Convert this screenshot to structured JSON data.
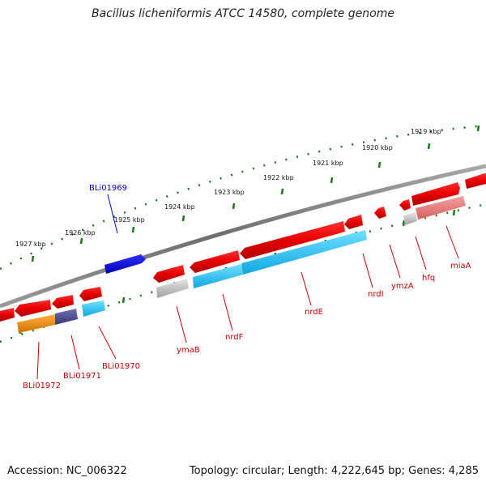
{
  "title": "Bacillus licheniformis ATCC 14580, complete genome",
  "accession": "Accession: NC_006322",
  "summary": "Topology: circular; Length: 4,222,645 bp; Genes: 4,285",
  "kbp_labels": [
    "1919 kbp",
    "1920 kbp",
    "1921 kbp",
    "1922 kbp",
    "1923 kbp",
    "1924 kbp",
    "1925 kbp",
    "1926 kbp",
    "1927 kbp"
  ],
  "gene_labels": {
    "BLi01969": "BLi01969",
    "BLi01970": "BLi01970",
    "BLi01971": "BLi01971",
    "BLi01972": "BLi01972",
    "ymaB": "ymaB",
    "nrdF": "nrdF",
    "nrdE": "nrdE",
    "nrdI": "nrdI",
    "ymzA": "ymzA",
    "hfq": "hfq",
    "miaA": "miaA"
  },
  "colors": {
    "gene_red": "#ee0000",
    "gene_light_red": "#f08080",
    "gene_blue": "#1010e0",
    "gene_cyan": "#18c8f0",
    "gene_grey": "#b8b8b8",
    "gene_orange": "#f08800",
    "gene_purple": "#505090",
    "backbone": "#7a7a7a",
    "tick_green": "#1a7a1a"
  }
}
